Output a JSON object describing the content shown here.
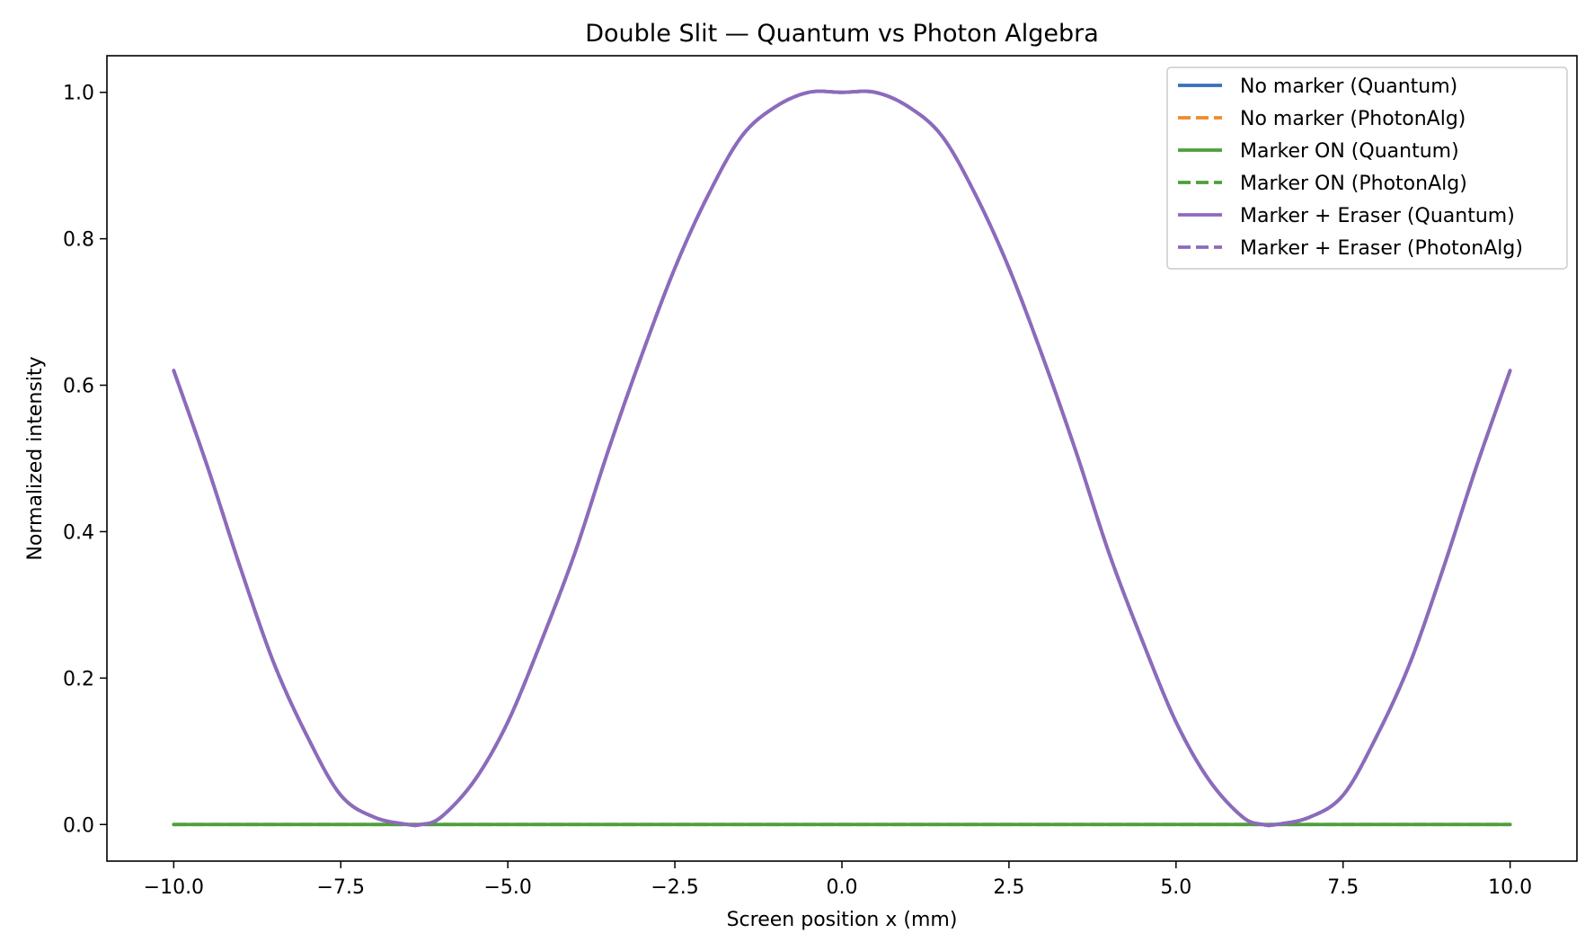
{
  "chart_data": {
    "type": "line",
    "title": "Double Slit — Quantum vs Photon Algebra",
    "xlabel": "Screen position x (mm)",
    "ylabel": "Normalized intensity",
    "xlim": [
      -11.0,
      11.0
    ],
    "ylim": [
      -0.05,
      1.05
    ],
    "xticks": [
      -10.0,
      -7.5,
      -5.0,
      -2.5,
      0.0,
      2.5,
      5.0,
      7.5,
      10.0
    ],
    "xtick_labels": [
      "−10.0",
      "−7.5",
      "−5.0",
      "−2.5",
      "0.0",
      "2.5",
      "5.0",
      "7.5",
      "10.0"
    ],
    "yticks": [
      0.0,
      0.2,
      0.4,
      0.6,
      0.8,
      1.0
    ],
    "ytick_labels": [
      "0.0",
      "0.2",
      "0.4",
      "0.6",
      "0.8",
      "1.0"
    ],
    "grid": false,
    "legend_position": "top-right",
    "x": [
      -10.0,
      -9.5,
      -9.0,
      -8.5,
      -8.0,
      -7.5,
      -7.0,
      -6.5,
      -6.3,
      -6.0,
      -5.5,
      -5.0,
      -4.5,
      -4.0,
      -3.5,
      -3.0,
      -2.5,
      -2.0,
      -1.5,
      -1.0,
      -0.5,
      0.0,
      0.5,
      1.0,
      1.5,
      2.0,
      2.5,
      3.0,
      3.5,
      4.0,
      4.5,
      5.0,
      5.5,
      6.0,
      6.3,
      6.5,
      7.0,
      7.5,
      8.0,
      8.5,
      9.0,
      9.5,
      10.0
    ],
    "series": [
      {
        "name": "No marker (Quantum)",
        "color": "#3b6fb6",
        "dash": "solid",
        "values": [
          0.62,
          0.49,
          0.35,
          0.22,
          0.12,
          0.04,
          0.01,
          0.0,
          0.0,
          0.01,
          0.06,
          0.14,
          0.25,
          0.37,
          0.51,
          0.64,
          0.76,
          0.86,
          0.94,
          0.98,
          1.0,
          1.0,
          1.0,
          0.98,
          0.94,
          0.86,
          0.76,
          0.64,
          0.51,
          0.37,
          0.25,
          0.14,
          0.06,
          0.01,
          0.0,
          0.0,
          0.01,
          0.04,
          0.12,
          0.22,
          0.35,
          0.49,
          0.62
        ]
      },
      {
        "name": "No marker (PhotonAlg)",
        "color": "#ef8a2c",
        "dash": "dashed",
        "values": [
          0.62,
          0.49,
          0.35,
          0.22,
          0.12,
          0.04,
          0.01,
          0.0,
          0.0,
          0.01,
          0.06,
          0.14,
          0.25,
          0.37,
          0.51,
          0.64,
          0.76,
          0.86,
          0.94,
          0.98,
          1.0,
          1.0,
          1.0,
          0.98,
          0.94,
          0.86,
          0.76,
          0.64,
          0.51,
          0.37,
          0.25,
          0.14,
          0.06,
          0.01,
          0.0,
          0.0,
          0.01,
          0.04,
          0.12,
          0.22,
          0.35,
          0.49,
          0.62
        ]
      },
      {
        "name": "Marker ON (Quantum)",
        "color": "#4f9e3b",
        "dash": "solid",
        "values": [
          0.0,
          0.0,
          0.0,
          0.0,
          0.0,
          0.0,
          0.0,
          0.0,
          0.0,
          0.0,
          0.0,
          0.0,
          0.0,
          0.0,
          0.0,
          0.0,
          0.0,
          0.0,
          0.0,
          0.0,
          0.0,
          0.0,
          0.0,
          0.0,
          0.0,
          0.0,
          0.0,
          0.0,
          0.0,
          0.0,
          0.0,
          0.0,
          0.0,
          0.0,
          0.0,
          0.0,
          0.0,
          0.0,
          0.0,
          0.0,
          0.0,
          0.0,
          0.0
        ]
      },
      {
        "name": "Marker ON (PhotonAlg)",
        "color": "#4f9e3b",
        "dash": "dashed",
        "values": [
          0.0,
          0.0,
          0.0,
          0.0,
          0.0,
          0.0,
          0.0,
          0.0,
          0.0,
          0.0,
          0.0,
          0.0,
          0.0,
          0.0,
          0.0,
          0.0,
          0.0,
          0.0,
          0.0,
          0.0,
          0.0,
          0.0,
          0.0,
          0.0,
          0.0,
          0.0,
          0.0,
          0.0,
          0.0,
          0.0,
          0.0,
          0.0,
          0.0,
          0.0,
          0.0,
          0.0,
          0.0,
          0.0,
          0.0,
          0.0,
          0.0,
          0.0,
          0.0
        ]
      },
      {
        "name": "Marker + Eraser (Quantum)",
        "color": "#8c6bbd",
        "dash": "solid",
        "values": [
          0.62,
          0.49,
          0.35,
          0.22,
          0.12,
          0.04,
          0.01,
          0.0,
          0.0,
          0.01,
          0.06,
          0.14,
          0.25,
          0.37,
          0.51,
          0.64,
          0.76,
          0.86,
          0.94,
          0.98,
          1.0,
          1.0,
          1.0,
          0.98,
          0.94,
          0.86,
          0.76,
          0.64,
          0.51,
          0.37,
          0.25,
          0.14,
          0.06,
          0.01,
          0.0,
          0.0,
          0.01,
          0.04,
          0.12,
          0.22,
          0.35,
          0.49,
          0.62
        ]
      },
      {
        "name": "Marker + Eraser (PhotonAlg)",
        "color": "#8c6bbd",
        "dash": "dashed",
        "values": [
          0.62,
          0.49,
          0.35,
          0.22,
          0.12,
          0.04,
          0.01,
          0.0,
          0.0,
          0.01,
          0.06,
          0.14,
          0.25,
          0.37,
          0.51,
          0.64,
          0.76,
          0.86,
          0.94,
          0.98,
          1.0,
          1.0,
          1.0,
          0.98,
          0.94,
          0.86,
          0.76,
          0.64,
          0.51,
          0.37,
          0.25,
          0.14,
          0.06,
          0.01,
          0.0,
          0.0,
          0.01,
          0.04,
          0.12,
          0.22,
          0.35,
          0.49,
          0.62
        ]
      }
    ]
  }
}
